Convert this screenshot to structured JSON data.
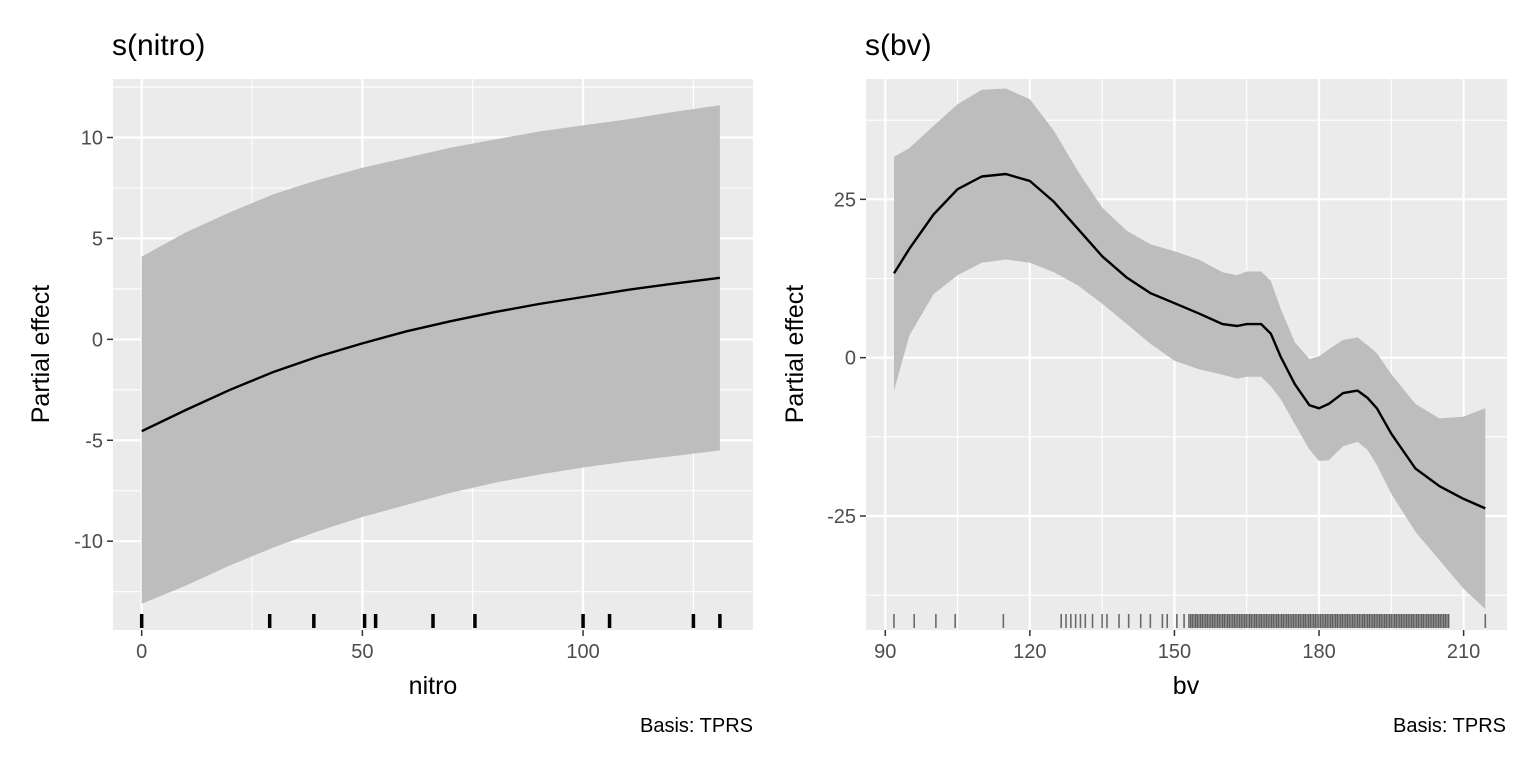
{
  "chart_data": [
    {
      "type": "line",
      "title": "s(nitro)",
      "xlabel": "nitro",
      "ylabel": "Partial effect",
      "caption": "Basis: TPRS",
      "xlim": [
        -6.5,
        138.5
      ],
      "ylim": [
        -14.4,
        12.9
      ],
      "x_ticks": [
        0,
        50,
        100
      ],
      "y_ticks": [
        -10,
        -5,
        0,
        5,
        10
      ],
      "y_tick_labels": [
        "-10",
        "-5",
        "0",
        "5",
        "10"
      ],
      "grid": true,
      "series": [
        {
          "x": [
            0,
            10,
            20,
            30,
            40,
            50,
            60,
            70,
            80,
            90,
            100,
            110,
            120,
            131
          ],
          "values": [
            -4.55,
            -3.5,
            -2.5,
            -1.6,
            -0.85,
            -0.2,
            0.4,
            0.9,
            1.35,
            1.75,
            2.1,
            2.45,
            2.75,
            3.05
          ],
          "lower": [
            -13.1,
            -12.2,
            -11.2,
            -10.3,
            -9.5,
            -8.8,
            -8.2,
            -7.6,
            -7.1,
            -6.7,
            -6.35,
            -6.05,
            -5.8,
            -5.5
          ],
          "upper": [
            4.1,
            5.3,
            6.3,
            7.2,
            7.9,
            8.5,
            9.0,
            9.5,
            9.9,
            10.3,
            10.6,
            10.9,
            11.25,
            11.6
          ]
        }
      ],
      "rug": [
        0,
        29,
        39,
        50.5,
        53,
        66,
        75.5,
        100,
        106,
        125,
        131
      ]
    },
    {
      "type": "line",
      "title": "s(bv)",
      "xlabel": "bv",
      "ylabel": "Partial effect",
      "caption": "Basis: TPRS",
      "xlim": [
        86,
        219
      ],
      "ylim": [
        -43,
        44
      ],
      "x_ticks": [
        90,
        120,
        150,
        180,
        210
      ],
      "y_ticks": [
        -25,
        0,
        25
      ],
      "y_tick_labels": [
        "-25",
        "0",
        "25"
      ],
      "grid": true,
      "series": [
        {
          "x": [
            91.8,
            95,
            100,
            105,
            110,
            115,
            120,
            125,
            130,
            135,
            140,
            145,
            150,
            155,
            160,
            163,
            165,
            168,
            170,
            172,
            175,
            178,
            180,
            182,
            185,
            188,
            190,
            192,
            195,
            200,
            205,
            210,
            214.5
          ],
          "values": [
            13.3,
            17.2,
            22.6,
            26.6,
            28.6,
            29.0,
            27.9,
            24.6,
            20.3,
            16.0,
            12.7,
            10.2,
            8.6,
            7.0,
            5.3,
            5.0,
            5.3,
            5.3,
            3.8,
            0.2,
            -4.2,
            -7.5,
            -8.0,
            -7.3,
            -5.6,
            -5.2,
            -6.3,
            -8.0,
            -12.0,
            -17.5,
            -20.3,
            -22.3,
            -23.8
          ],
          "lower": [
            -5.2,
            3.5,
            10.0,
            13.0,
            15.0,
            15.5,
            15.0,
            13.5,
            11.4,
            8.5,
            5.4,
            2.2,
            -0.5,
            -1.8,
            -2.7,
            -3.3,
            -3.0,
            -3.0,
            -4.5,
            -6.5,
            -10.5,
            -14.5,
            -16.3,
            -16.2,
            -14.0,
            -13.3,
            -14.5,
            -17.0,
            -21.5,
            -27.5,
            -32.0,
            -36.5,
            -39.7
          ],
          "upper": [
            31.7,
            33.1,
            36.6,
            40.0,
            42.3,
            42.5,
            40.8,
            35.8,
            29.4,
            23.7,
            20.1,
            17.9,
            16.8,
            15.5,
            13.5,
            13.0,
            13.6,
            13.6,
            12.1,
            7.8,
            2.4,
            -0.2,
            0.2,
            1.3,
            2.8,
            3.2,
            2.0,
            0.7,
            -2.6,
            -7.3,
            -9.6,
            -9.3,
            -8.0
          ]
        }
      ],
      "rug_sparse": [
        91.8,
        96,
        100.5,
        104.5,
        114.5,
        126.5,
        127.5,
        128.5,
        129.5,
        130.5,
        131.5,
        133,
        135,
        136,
        138.5,
        140.5,
        143,
        145,
        147.5,
        148.5,
        150.5,
        152
      ],
      "rug_dense_range": [
        153,
        207
      ],
      "rug_dense_step": 0.35,
      "rug_extra": [
        214.5
      ]
    }
  ]
}
